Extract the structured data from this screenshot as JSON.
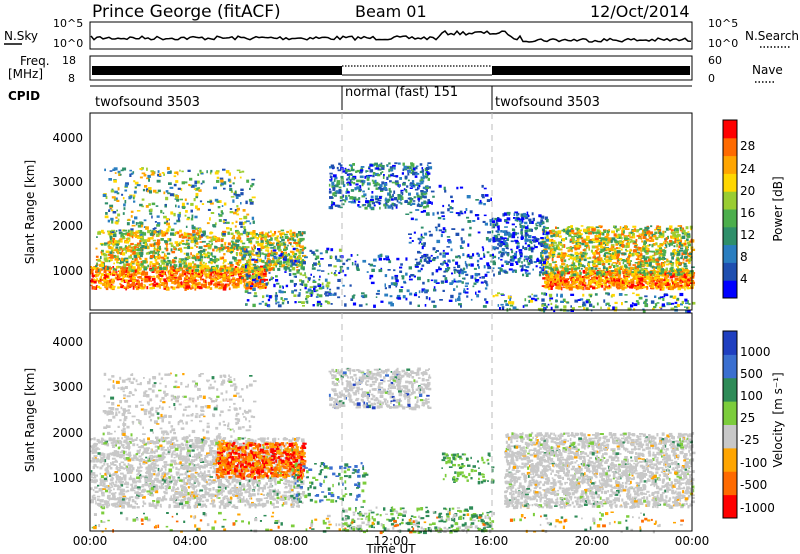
{
  "header": {
    "title": "Prince George (fitACF)",
    "beam": "Beam 01",
    "date": "12/Oct/2014"
  },
  "top_panels": {
    "nsky_label": "N.Sky",
    "nsky_ticks": [
      "10^5",
      "10^0"
    ],
    "nsearch_label": "N.Search",
    "nsearch_ticks": [
      "10^5",
      "10^0"
    ],
    "freq_label_1": "Freq.",
    "freq_label_2": "[MHz]",
    "freq_ticks": [
      "18",
      "8"
    ],
    "nave_label": "Nave",
    "nave_ticks": [
      "60",
      "0"
    ],
    "cpid_label": "CPID",
    "cpid_segments": [
      {
        "label": "twofsound 3503",
        "start": 0,
        "end": 10
      },
      {
        "label": "normal (fast) 151",
        "start": 10,
        "end": 16
      },
      {
        "label": "twofsound 3503",
        "start": 16,
        "end": 24
      }
    ]
  },
  "chart_data": [
    {
      "type": "heatmap",
      "name": "power",
      "ylabel": "Slant Range [km]",
      "y_ticks": [
        "4000",
        "3000",
        "2000",
        "1000"
      ],
      "ylim": [
        200,
        4600
      ],
      "x_ticks": [
        "00:00",
        "04:00",
        "08:00",
        "12:00",
        "16:00",
        "20:00",
        "00:00"
      ],
      "xlim_hours": [
        0,
        24
      ],
      "colorbar_label": "Power [dB]",
      "colorbar_ticks": [
        "28",
        "24",
        "20",
        "16",
        "12",
        "8",
        "4"
      ],
      "colorbar_colors": [
        "#0000ff",
        "#1f4fb0",
        "#2a7ec0",
        "#2f8f6a",
        "#4cae4c",
        "#9acd32",
        "#ffd700",
        "#ffa500",
        "#ff6a00",
        "#ff0000"
      ]
    },
    {
      "type": "heatmap",
      "name": "velocity",
      "ylabel": "Slant Range [km]",
      "y_ticks": [
        "4000",
        "3000",
        "2000",
        "1000"
      ],
      "ylim": [
        200,
        4600
      ],
      "x_ticks": [
        "00:00",
        "04:00",
        "08:00",
        "12:00",
        "16:00",
        "20:00",
        "00:00"
      ],
      "xlim_hours": [
        0,
        24
      ],
      "xlabel": "Time UT",
      "colorbar_label": "Velocity",
      "colorbar_unit": "[m s⁻¹]",
      "colorbar_ticks": [
        "1000",
        "500",
        "100",
        "25",
        "-25",
        "-100",
        "-500",
        "-1000"
      ],
      "colorbar_colors": [
        "#1f3fc0",
        "#3a6fd0",
        "#2e8b57",
        "#7ccd3c",
        "#c8c8c8",
        "#ffa500",
        "#ff6a00",
        "#ff0000"
      ]
    }
  ]
}
